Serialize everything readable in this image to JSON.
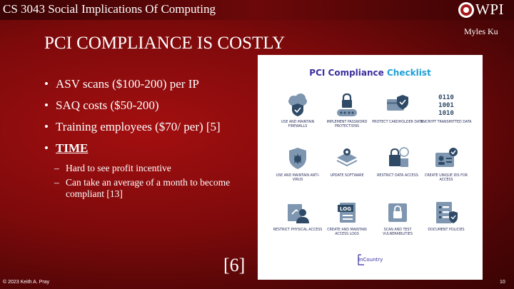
{
  "header": {
    "course": "CS 3043 Social Implications Of Computing",
    "logo_text": "WPI",
    "author": "Myles Ku"
  },
  "slide": {
    "title": "PCI COMPLIANCE IS COSTLY",
    "bullets": [
      "ASV scans ($100-200) per IP",
      "SAQ costs ($50-200)",
      "Training employees ($70/ per) [5]"
    ],
    "time_label": "TIME",
    "sub_bullets": [
      "Hard to see profit incentive",
      "Can take an average of a month to become compliant [13]"
    ],
    "citation": "[6]"
  },
  "checklist": {
    "title_part1": "PCI Compliance",
    "title_part2": "Checklist",
    "items": [
      "Use and maintain firewalls",
      "Implement password protections",
      "Protect cardholder data",
      "Encrypt transmitted data",
      "Use and maintain anti-virus",
      "Update software",
      "Restrict data access",
      "Create unique IDs for access",
      "Restrict physical access",
      "Create and maintain access logs",
      "Scan and test vulnerabilities",
      "Document policies"
    ],
    "brand": "InCountry",
    "icon_text": {
      "binary": [
        "0110",
        "1001",
        "1010"
      ],
      "log": "LOG"
    },
    "colors": {
      "icon": "#7f96b0",
      "accent": "#2f4a66",
      "title": "#3a2f9e",
      "title_accent": "#1ea0d6"
    }
  },
  "footer": {
    "copyright": "© 2023 Keith A. Pray",
    "page": "10"
  }
}
